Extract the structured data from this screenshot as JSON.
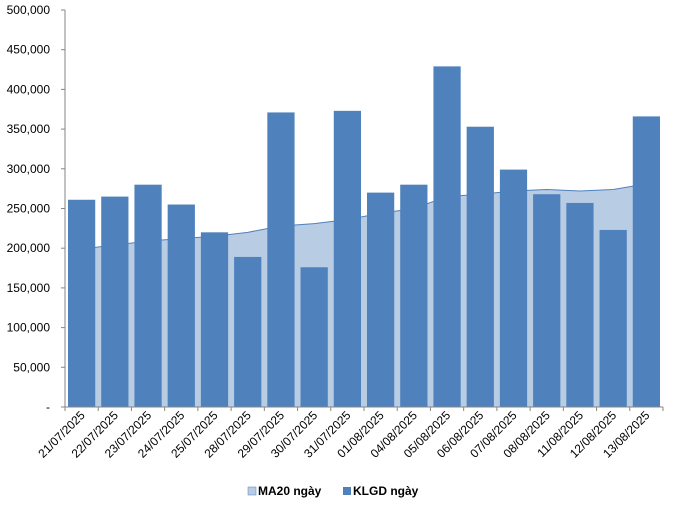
{
  "chart_data": {
    "type": "bar",
    "categories": [
      "21/07/2025",
      "22/07/2025",
      "23/07/2025",
      "24/07/2025",
      "25/07/2025",
      "28/07/2025",
      "29/07/2025",
      "30/07/2025",
      "31/07/2025",
      "01/08/2025",
      "04/08/2025",
      "05/08/2025",
      "06/08/2025",
      "07/08/2025",
      "08/08/2025",
      "11/08/2025",
      "12/08/2025",
      "13/08/2025"
    ],
    "series": [
      {
        "name": "MA20 ngày",
        "kind": "area",
        "color": "#b8cce4",
        "line_color": "#4f81bd",
        "values": [
          199000,
          204000,
          209000,
          212000,
          215000,
          220000,
          228000,
          231000,
          236000,
          244000,
          250000,
          265000,
          268000,
          272000,
          274000,
          272000,
          274000,
          281000
        ]
      },
      {
        "name": "KLGD ngày",
        "kind": "bar",
        "color": "#4f81bd",
        "values": [
          261000,
          265000,
          280000,
          255000,
          220000,
          189000,
          371000,
          176000,
          373000,
          270000,
          280000,
          429000,
          353000,
          299000,
          268000,
          257000,
          223000,
          366000
        ]
      }
    ],
    "y_ticks": [
      "-",
      "50,000",
      "100,000",
      "150,000",
      "200,000",
      "250,000",
      "300,000",
      "350,000",
      "400,000",
      "450,000",
      "500,000"
    ],
    "ylim": [
      0,
      500000
    ],
    "grid": false,
    "legend_position": "bottom"
  }
}
